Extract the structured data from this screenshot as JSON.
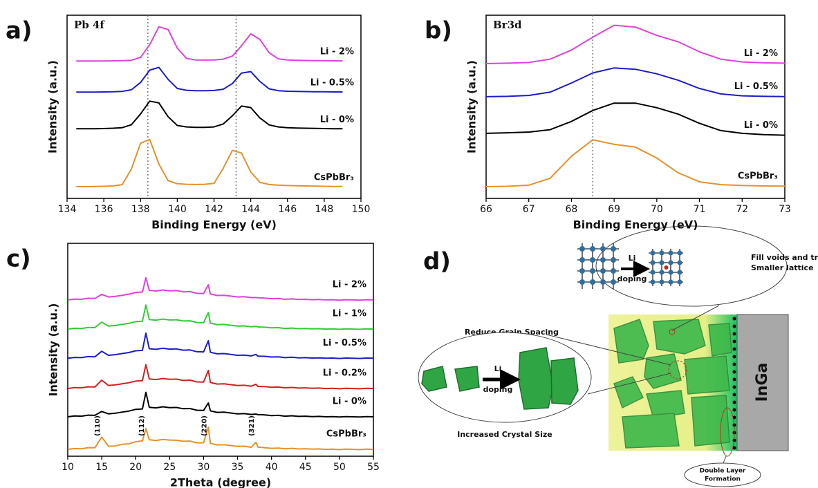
{
  "chart_data": [
    {
      "type": "line",
      "label": "a)",
      "title": "Pb 4f",
      "xlabel": "Binding Energy (eV)",
      "ylabel": "Intensity (a.u.)",
      "xlim": [
        134,
        150
      ],
      "xticks": [
        134,
        136,
        138,
        140,
        142,
        144,
        146,
        148,
        150
      ],
      "ylim": [
        0,
        10
      ],
      "ref_lines": [
        138.4,
        143.2
      ],
      "x": [
        134.5,
        135,
        135.5,
        136,
        136.5,
        137,
        137.5,
        138,
        138.5,
        139,
        139.5,
        140,
        140.5,
        141,
        141.5,
        142,
        142.5,
        143,
        143.5,
        144,
        144.5,
        145,
        145.5,
        146,
        146.5,
        147,
        147.5,
        148,
        148.5,
        149
      ],
      "series": [
        {
          "name": "Li - 2%",
          "color": "#e040e0",
          "values": [
            7.5,
            7.5,
            7.5,
            7.5,
            7.51,
            7.52,
            7.54,
            7.7,
            8.39,
            9.37,
            9.22,
            8.2,
            7.64,
            7.56,
            7.55,
            7.56,
            7.6,
            7.77,
            8.33,
            8.98,
            8.68,
            7.95,
            7.62,
            7.56,
            7.54,
            7.53,
            7.52,
            7.52,
            7.51,
            7.51
          ]
        },
        {
          "name": "Li - 0.5%",
          "color": "#1c1cc8",
          "values": [
            5.8,
            5.8,
            5.8,
            5.81,
            5.82,
            5.84,
            5.93,
            6.33,
            7.0,
            7.15,
            6.5,
            6.0,
            5.9,
            5.88,
            5.88,
            5.89,
            5.96,
            6.27,
            6.84,
            6.92,
            6.38,
            5.98,
            5.88,
            5.85,
            5.84,
            5.83,
            5.82,
            5.82,
            5.81,
            5.81
          ]
        },
        {
          "name": "Li - 0%",
          "color": "#000000",
          "values": [
            3.8,
            3.8,
            3.8,
            3.81,
            3.83,
            3.86,
            4.02,
            4.61,
            5.31,
            5.21,
            4.46,
            3.98,
            3.9,
            3.88,
            3.88,
            3.9,
            4.06,
            4.51,
            5.04,
            4.96,
            4.39,
            4.01,
            3.9,
            3.86,
            3.84,
            3.83,
            3.82,
            3.81,
            3.8,
            3.8
          ]
        },
        {
          "name": "CsPbBr₃",
          "color": "#e8902a",
          "values": [
            0.64,
            0.64,
            0.65,
            0.66,
            0.68,
            0.75,
            1.6,
            3.01,
            3.22,
            1.87,
            0.97,
            0.8,
            0.77,
            0.76,
            0.77,
            0.82,
            1.64,
            2.62,
            2.47,
            1.44,
            0.87,
            0.76,
            0.72,
            0.7,
            0.69,
            0.68,
            0.67,
            0.66,
            0.65,
            0.65
          ]
        }
      ]
    },
    {
      "type": "line",
      "label": "b)",
      "title": "Br3d",
      "xlabel": "Binding Energy (eV)",
      "ylabel": "Intensity (a.u.)",
      "xlim": [
        66,
        73
      ],
      "xticks": [
        66,
        67,
        68,
        69,
        70,
        71,
        72,
        73
      ],
      "ylim": [
        0,
        10
      ],
      "ref_lines": [
        68.5
      ],
      "x": [
        66,
        66.5,
        67,
        67.5,
        68,
        68.5,
        69,
        69.5,
        70,
        70.5,
        71,
        71.5,
        72,
        72.5,
        73
      ],
      "series": [
        {
          "name": "Li - 2%",
          "color": "#e040e0",
          "values": [
            7.36,
            7.38,
            7.42,
            7.6,
            8.1,
            8.8,
            9.45,
            9.35,
            8.9,
            8.55,
            8.0,
            7.6,
            7.45,
            7.4,
            7.38
          ]
        },
        {
          "name": "Li - 0.5%",
          "color": "#1c1cc8",
          "values": [
            5.55,
            5.57,
            5.62,
            5.8,
            6.3,
            6.85,
            7.12,
            7.05,
            6.8,
            6.45,
            6.0,
            5.7,
            5.6,
            5.57,
            5.56
          ]
        },
        {
          "name": "Li - 0%",
          "color": "#000000",
          "values": [
            3.55,
            3.58,
            3.62,
            3.75,
            4.2,
            4.8,
            5.2,
            5.2,
            4.95,
            4.6,
            4.1,
            3.7,
            3.55,
            3.48,
            3.45
          ]
        },
        {
          "name": "CsPbBr₃",
          "color": "#e8902a",
          "values": [
            0.64,
            0.66,
            0.72,
            1.1,
            2.3,
            3.2,
            2.95,
            2.8,
            2.2,
            1.4,
            0.9,
            0.75,
            0.7,
            0.68,
            0.67
          ]
        }
      ]
    },
    {
      "type": "line",
      "label": "c)",
      "xlabel": "2Theta (degree)",
      "ylabel": "Intensity (a.u.)",
      "xlim": [
        10,
        55
      ],
      "xticks": [
        10,
        15,
        20,
        25,
        30,
        35,
        40,
        45,
        50,
        55
      ],
      "ylim": [
        0,
        10
      ],
      "annotations": [
        {
          "text": "(110)",
          "x": 15
        },
        {
          "text": "(112)",
          "x": 21.5
        },
        {
          "text": "(220)",
          "x": 30.7
        },
        {
          "text": "(321)",
          "x": 37.7
        }
      ],
      "x": [
        10,
        11,
        12,
        13,
        14,
        15,
        16,
        17,
        18,
        19,
        20,
        21,
        21.5,
        22,
        23,
        24,
        25,
        26,
        27,
        28,
        29,
        30,
        30.7,
        31,
        32,
        33,
        34,
        35,
        36,
        37,
        37.7,
        38,
        39,
        40,
        41,
        42,
        43,
        44,
        45,
        46,
        47,
        48,
        49,
        50,
        51,
        52,
        53,
        54,
        55
      ],
      "series": [
        {
          "name": "Li - 2%",
          "color": "#e040e0",
          "values": [
            7.34,
            7.38,
            7.37,
            7.42,
            7.41,
            7.6,
            7.48,
            7.51,
            7.56,
            7.61,
            7.69,
            7.71,
            8.38,
            7.79,
            7.76,
            7.81,
            7.77,
            7.78,
            7.72,
            7.73,
            7.65,
            7.64,
            8.05,
            7.62,
            7.55,
            7.56,
            7.52,
            7.48,
            7.49,
            7.45,
            7.45,
            7.44,
            7.43,
            7.4,
            7.41,
            7.37,
            7.39,
            7.36,
            7.37,
            7.35,
            7.36,
            7.34,
            7.35,
            7.33,
            7.35,
            7.34,
            7.33,
            7.35,
            7.34
          ]
        },
        {
          "name": "Li - 1%",
          "color": "#33cc33",
          "values": [
            5.97,
            6.01,
            6.0,
            6.05,
            6.04,
            6.3,
            6.11,
            6.14,
            6.19,
            6.24,
            6.32,
            6.34,
            7.1,
            6.42,
            6.39,
            6.44,
            6.4,
            6.41,
            6.35,
            6.36,
            6.28,
            6.27,
            6.75,
            6.25,
            6.18,
            6.19,
            6.15,
            6.11,
            6.12,
            6.08,
            6.1,
            6.07,
            6.06,
            6.03,
            6.04,
            6.0,
            6.02,
            5.99,
            6.0,
            5.98,
            5.99,
            5.97,
            5.98,
            5.96,
            5.98,
            5.97,
            5.96,
            5.98,
            5.97
          ]
        },
        {
          "name": "Li - 0.5%",
          "color": "#1c1cc8",
          "values": [
            4.6,
            4.64,
            4.63,
            4.68,
            4.67,
            4.93,
            4.74,
            4.77,
            4.82,
            4.87,
            4.95,
            4.97,
            5.78,
            5.05,
            5.02,
            5.07,
            5.03,
            5.04,
            4.98,
            4.99,
            4.91,
            4.9,
            5.42,
            4.88,
            4.81,
            4.82,
            4.78,
            4.74,
            4.75,
            4.71,
            4.78,
            4.7,
            4.69,
            4.66,
            4.67,
            4.63,
            4.65,
            4.62,
            4.63,
            4.61,
            4.62,
            4.6,
            4.61,
            4.59,
            4.61,
            4.6,
            4.59,
            4.61,
            4.6
          ]
        },
        {
          "name": "Li - 0.2%",
          "color": "#d42020",
          "values": [
            3.18,
            3.22,
            3.21,
            3.26,
            3.25,
            3.57,
            3.32,
            3.35,
            3.4,
            3.45,
            3.53,
            3.55,
            4.3,
            3.63,
            3.6,
            3.65,
            3.61,
            3.62,
            3.56,
            3.57,
            3.49,
            3.48,
            4.03,
            3.46,
            3.39,
            3.4,
            3.36,
            3.32,
            3.33,
            3.29,
            3.38,
            3.28,
            3.27,
            3.24,
            3.25,
            3.21,
            3.23,
            3.2,
            3.21,
            3.19,
            3.2,
            3.18,
            3.19,
            3.17,
            3.19,
            3.18,
            3.17,
            3.19,
            3.18
          ]
        },
        {
          "name": "Li - 0%",
          "color": "#000000",
          "values": [
            1.85,
            1.89,
            1.88,
            1.93,
            1.92,
            2.1,
            1.99,
            2.02,
            2.07,
            2.12,
            2.2,
            2.22,
            3.0,
            2.3,
            2.27,
            2.32,
            2.28,
            2.29,
            2.23,
            2.24,
            2.16,
            2.15,
            2.5,
            2.13,
            2.06,
            2.07,
            2.03,
            1.99,
            2.0,
            1.96,
            1.98,
            1.95,
            1.94,
            1.91,
            1.92,
            1.88,
            1.9,
            1.87,
            1.88,
            1.86,
            1.87,
            1.85,
            1.86,
            1.84,
            1.86,
            1.85,
            1.84,
            1.86,
            1.85
          ]
        },
        {
          "name": "CsPbBr₃",
          "color": "#e8902a",
          "values": [
            0.32,
            0.36,
            0.35,
            0.4,
            0.4,
            0.9,
            0.47,
            0.48,
            0.56,
            0.58,
            0.68,
            0.72,
            1.3,
            0.77,
            0.74,
            0.79,
            0.76,
            0.75,
            0.7,
            0.71,
            0.63,
            0.63,
            1.36,
            0.6,
            0.53,
            0.54,
            0.5,
            0.46,
            0.47,
            0.42,
            0.65,
            0.43,
            0.4,
            0.37,
            0.38,
            0.35,
            0.37,
            0.34,
            0.35,
            0.33,
            0.34,
            0.32,
            0.33,
            0.31,
            0.33,
            0.32,
            0.31,
            0.33,
            0.32
          ]
        }
      ]
    }
  ],
  "diagram": {
    "label": "d)",
    "callout_top": [
      "Fill voids and traps,",
      "Smaller lattice"
    ],
    "lattice_arrow": [
      "Li",
      "doping"
    ],
    "grain_title": "Reduce Grain Spacing",
    "grain_arrow": [
      "Li",
      "doping"
    ],
    "grain_caption": "Increased Crystal Size",
    "electrode": "InGa",
    "double_layer": [
      "Double Layer",
      "Formation"
    ]
  }
}
